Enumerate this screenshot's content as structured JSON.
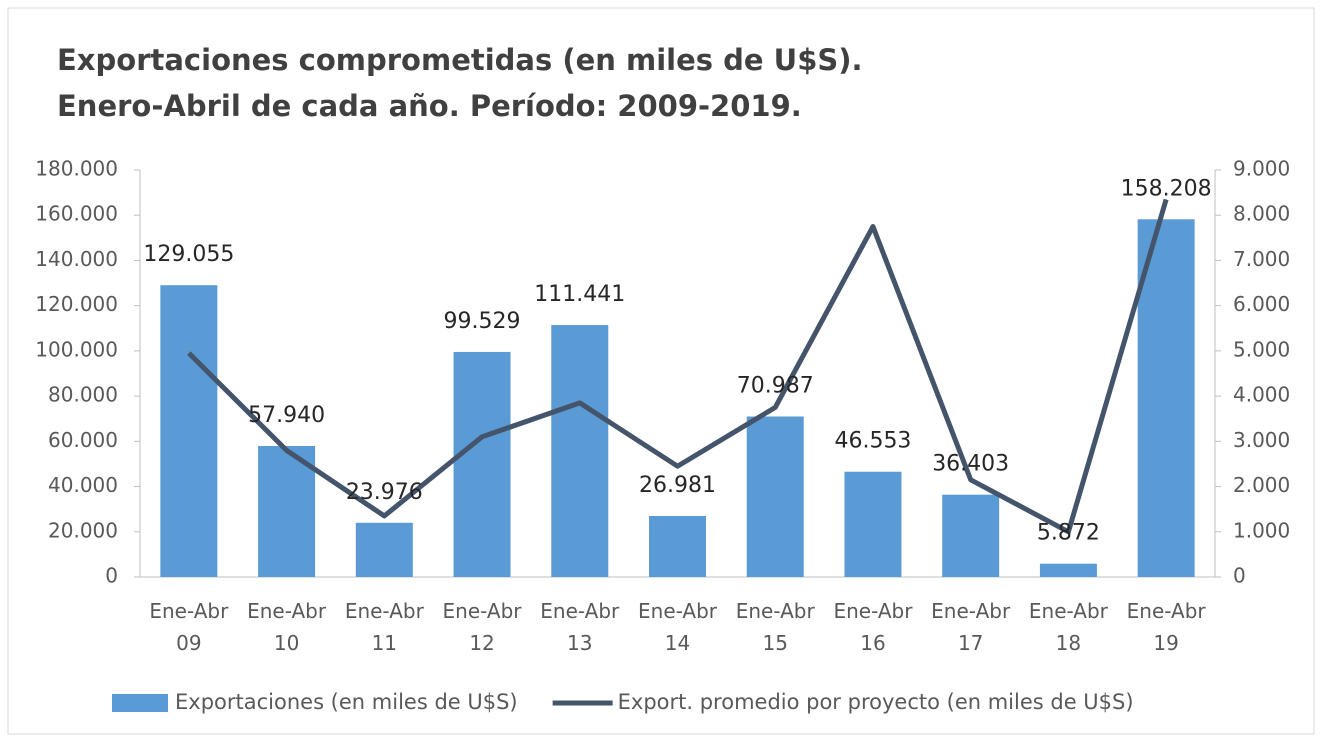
{
  "chart_data": {
    "type": "bar_line",
    "title": [
      "Exportaciones comprometidas (en miles de U$S).",
      "Enero-Abril de cada año. Período: 2009-2019."
    ],
    "categories": [
      "Ene-Abr 09",
      "Ene-Abr 10",
      "Ene-Abr 11",
      "Ene-Abr 12",
      "Ene-Abr 13",
      "Ene-Abr 14",
      "Ene-Abr 15",
      "Ene-Abr 16",
      "Ene-Abr 17",
      "Ene-Abr 18",
      "Ene-Abr 19"
    ],
    "series": [
      {
        "name": "Exportaciones (en miles de U$S)",
        "color": "#5b9bd5",
        "type": "bar",
        "values": [
          129055,
          57940,
          23976,
          99529,
          111441,
          26981,
          70987,
          46553,
          36403,
          5872,
          158208
        ],
        "value_labels": [
          "129.055",
          "57.940",
          "23.976",
          "99.529",
          "111.441",
          "26.981",
          "70.987",
          "46.553",
          "36.403",
          "5.872",
          "158.208"
        ]
      },
      {
        "name": "Export. promedio por proyecto (en miles de U$S)",
        "color": "#44546a",
        "type": "line",
        "axis": "y2",
        "values": [
          4950,
          2800,
          1350,
          3100,
          3850,
          2450,
          3750,
          7750,
          2150,
          1000,
          8350
        ]
      }
    ],
    "ylim": [
      0,
      180000
    ],
    "yticks": [
      0,
      {
        "value": 20000,
        "label": "20.000"
      },
      {
        "value": 40000,
        "label": "40.000"
      },
      {
        "value": 60000,
        "label": "60.000"
      },
      {
        "value": 80000,
        "label": "80.000"
      },
      {
        "value": 100000,
        "label": "100.000"
      },
      {
        "value": 120000,
        "label": "120.000"
      },
      {
        "value": 140000,
        "label": "140.000"
      },
      {
        "value": 160000,
        "label": "160.000"
      },
      {
        "value": 180000,
        "label": "180.000"
      }
    ],
    "y2lim": [
      0,
      9000
    ],
    "y2ticks": [
      0,
      {
        "value": 1000,
        "label": "1.000"
      },
      {
        "value": 2000,
        "label": "2.000"
      },
      {
        "value": 3000,
        "label": "3.000"
      },
      {
        "value": 4000,
        "label": "4.000"
      },
      {
        "value": 5000,
        "label": "5.000"
      },
      {
        "value": 6000,
        "label": "6.000"
      },
      {
        "value": 7000,
        "label": "7.000"
      },
      {
        "value": 8000,
        "label": "8.000"
      },
      {
        "value": 9000,
        "label": "9.000"
      }
    ],
    "legend": "bottom"
  }
}
